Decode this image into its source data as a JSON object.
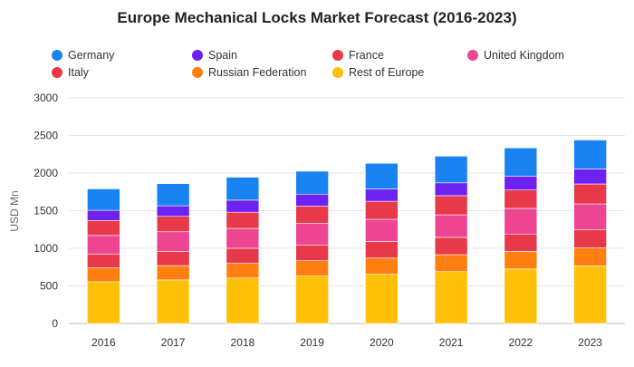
{
  "chart_data": {
    "type": "bar",
    "stacked": true,
    "title": "Europe Mechanical Locks Market Forecast (2016-2023)",
    "ylabel": "USD Mn",
    "xlabel": "",
    "ylim": [
      0,
      3000
    ],
    "yticks": [
      0,
      500,
      1000,
      1500,
      2000,
      2500,
      3000
    ],
    "grid": true,
    "legend_position": "top",
    "categories": [
      "2016",
      "2017",
      "2018",
      "2019",
      "2020",
      "2021",
      "2022",
      "2023"
    ],
    "series": [
      {
        "name": "Rest of Europe",
        "color": "#FFC107",
        "values": [
          555,
          580,
          605,
          630,
          655,
          690,
          725,
          765
        ]
      },
      {
        "name": "Russian Federation",
        "color": "#FF7F11",
        "values": [
          185,
          190,
          195,
          205,
          215,
          225,
          235,
          240
        ]
      },
      {
        "name": "Italy",
        "color": "#E8394A",
        "values": [
          180,
          190,
          200,
          210,
          220,
          230,
          230,
          240
        ]
      },
      {
        "name": "United Kingdom",
        "color": "#EE4592",
        "values": [
          250,
          260,
          265,
          285,
          295,
          300,
          340,
          345
        ]
      },
      {
        "name": "France",
        "color": "#E8394A",
        "values": [
          200,
          205,
          215,
          230,
          240,
          255,
          245,
          265
        ]
      },
      {
        "name": "Spain",
        "color": "#6D22F2",
        "values": [
          135,
          140,
          160,
          160,
          165,
          170,
          185,
          200
        ]
      },
      {
        "name": "Germany",
        "color": "#1A83F2",
        "values": [
          285,
          295,
          305,
          305,
          340,
          355,
          375,
          385
        ]
      }
    ],
    "legend": [
      {
        "name": "Germany",
        "color": "#1A83F2"
      },
      {
        "name": "Spain",
        "color": "#6D22F2"
      },
      {
        "name": "France",
        "color": "#E8394A"
      },
      {
        "name": "United Kingdom",
        "color": "#EE4592"
      },
      {
        "name": "Italy",
        "color": "#E8394A"
      },
      {
        "name": "Russian Federation",
        "color": "#FF7F11"
      },
      {
        "name": "Rest of Europe",
        "color": "#FFC107"
      }
    ]
  }
}
